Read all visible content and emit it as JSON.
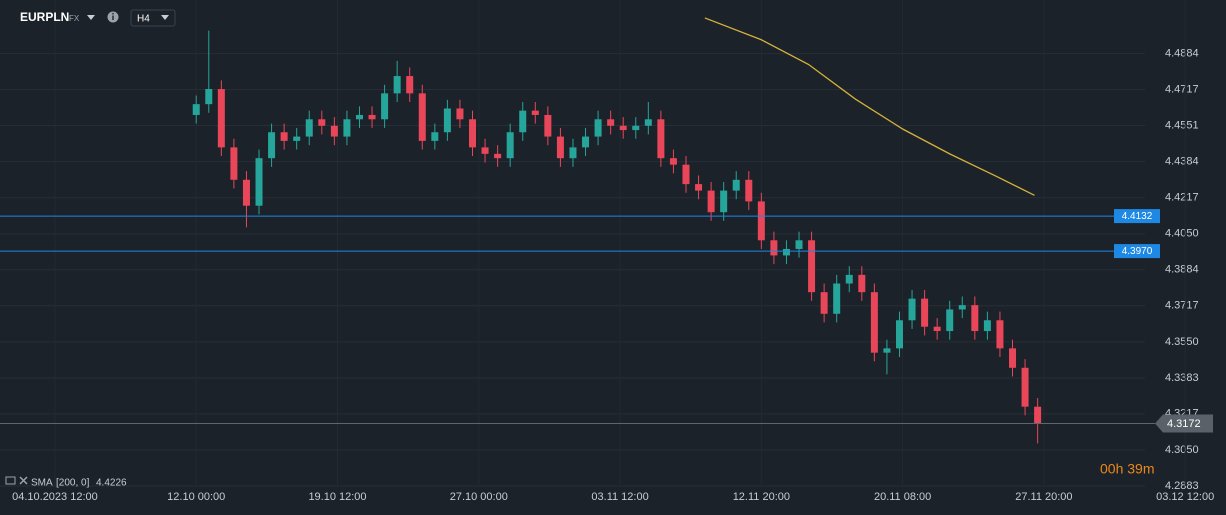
{
  "chart_data": {
    "type": "candlestick",
    "symbol": "EURPLN",
    "market": "FX",
    "timeframe": "H4",
    "up_color": "#26a69a",
    "down_color": "#e9465a",
    "grid": true,
    "xlim": [
      -17.5,
      373
    ],
    "xticks": [
      {
        "value": 0,
        "label": "04.10.2023 12:00"
      },
      {
        "value": 45,
        "label": "12.10 00:00"
      },
      {
        "value": 90,
        "label": "19.10 12:00"
      },
      {
        "value": 135,
        "label": "27.10 00:00"
      },
      {
        "value": 180,
        "label": "03.11 12:00"
      },
      {
        "value": 225,
        "label": "12.11 20:00"
      },
      {
        "value": 270,
        "label": "20.11 08:00"
      },
      {
        "value": 315,
        "label": "27.11 20:00"
      },
      {
        "value": 360,
        "label": "03.12 12:00"
      }
    ],
    "ylim": [
      4.2883,
      4.5132
    ],
    "yticks": [
      4.4884,
      4.4717,
      4.4551,
      4.4384,
      4.4217,
      {
        "value": 4.405,
        "label": "4.4050"
      },
      4.3884,
      4.3717,
      {
        "value": 4.355,
        "label": "4.3550"
      },
      4.3383,
      4.3217,
      {
        "value": 4.305,
        "label": "4.3050"
      },
      4.2883
    ],
    "x": [
      45,
      49,
      53,
      57,
      61,
      65,
      69,
      73,
      77,
      81,
      85,
      89,
      93,
      97,
      101,
      105,
      109,
      113,
      117,
      121,
      125,
      129,
      133,
      137,
      141,
      145,
      149,
      153,
      157,
      161,
      165,
      169,
      173,
      177,
      181,
      185,
      189,
      193,
      197,
      201,
      205,
      209,
      213,
      217,
      221,
      225,
      229,
      233,
      237,
      241,
      245,
      249,
      253,
      257,
      261,
      265,
      269,
      273,
      277,
      281,
      285,
      289,
      293,
      297,
      301,
      305,
      309,
      313
    ],
    "open": [
      4.46,
      4.465,
      4.472,
      4.445,
      4.43,
      4.418,
      4.44,
      4.452,
      4.448,
      4.45,
      4.458,
      4.455,
      4.45,
      4.458,
      4.46,
      4.458,
      4.47,
      4.478,
      4.47,
      4.448,
      4.452,
      4.463,
      4.458,
      4.445,
      4.442,
      4.44,
      4.452,
      4.462,
      4.46,
      4.45,
      4.44,
      4.445,
      4.45,
      4.458,
      4.455,
      4.453,
      4.455,
      4.458,
      4.44,
      4.437,
      4.428,
      4.425,
      4.415,
      4.425,
      4.43,
      4.42,
      4.402,
      4.395,
      4.398,
      4.402,
      4.378,
      4.368,
      4.382,
      4.386,
      4.378,
      4.35,
      4.352,
      4.365,
      4.375,
      4.362,
      4.36,
      4.37,
      4.372,
      4.36,
      4.365,
      4.352,
      4.343,
      4.325
    ],
    "high": [
      4.469,
      4.499,
      4.476,
      4.449,
      4.434,
      4.444,
      4.456,
      4.456,
      4.454,
      4.462,
      4.462,
      4.459,
      4.462,
      4.464,
      4.464,
      4.474,
      4.485,
      4.482,
      4.474,
      4.456,
      4.467,
      4.467,
      4.462,
      4.449,
      4.446,
      4.456,
      4.466,
      4.466,
      4.464,
      4.454,
      4.449,
      4.454,
      4.462,
      4.462,
      4.459,
      4.459,
      4.466,
      4.462,
      4.444,
      4.441,
      4.432,
      4.429,
      4.429,
      4.434,
      4.434,
      4.424,
      4.406,
      4.402,
      4.406,
      4.406,
      4.382,
      4.386,
      4.39,
      4.39,
      4.382,
      4.356,
      4.369,
      4.379,
      4.379,
      4.366,
      4.374,
      4.376,
      4.376,
      4.369,
      4.369,
      4.356,
      4.347,
      4.329
    ],
    "low": [
      4.456,
      4.461,
      4.441,
      4.426,
      4.408,
      4.414,
      4.436,
      4.444,
      4.444,
      4.446,
      4.451,
      4.446,
      4.446,
      4.454,
      4.454,
      4.454,
      4.466,
      4.466,
      4.444,
      4.444,
      4.448,
      4.454,
      4.441,
      4.438,
      4.436,
      4.436,
      4.448,
      4.456,
      4.446,
      4.436,
      4.436,
      4.441,
      4.446,
      4.451,
      4.449,
      4.449,
      4.451,
      4.436,
      4.433,
      4.424,
      4.421,
      4.411,
      4.411,
      4.421,
      4.416,
      4.398,
      4.391,
      4.391,
      4.394,
      4.374,
      4.364,
      4.364,
      4.378,
      4.374,
      4.346,
      4.34,
      4.348,
      4.361,
      4.358,
      4.356,
      4.356,
      4.366,
      4.356,
      4.356,
      4.348,
      4.339,
      4.321,
      4.308
    ],
    "close": [
      4.465,
      4.472,
      4.445,
      4.43,
      4.418,
      4.44,
      4.452,
      4.448,
      4.45,
      4.458,
      4.455,
      4.45,
      4.458,
      4.46,
      4.458,
      4.47,
      4.478,
      4.47,
      4.448,
      4.452,
      4.463,
      4.458,
      4.445,
      4.442,
      4.44,
      4.452,
      4.462,
      4.46,
      4.45,
      4.44,
      4.445,
      4.45,
      4.458,
      4.455,
      4.453,
      4.455,
      4.458,
      4.44,
      4.437,
      4.428,
      4.425,
      4.415,
      4.425,
      4.43,
      4.42,
      4.402,
      4.395,
      4.398,
      4.402,
      4.378,
      4.368,
      4.382,
      4.386,
      4.378,
      4.35,
      4.352,
      4.365,
      4.375,
      4.362,
      4.36,
      4.37,
      4.372,
      4.36,
      4.365,
      4.352,
      4.343,
      4.325,
      4.3172
    ],
    "indicator": {
      "name": "SMA",
      "params": "[200, 0]",
      "value": 4.4226,
      "color": "#d4b23a",
      "x": [
        207,
        225,
        240,
        255,
        270,
        285,
        300,
        312
      ],
      "values": [
        4.5049,
        4.4948,
        4.4834,
        4.4673,
        4.4535,
        4.442,
        4.4315,
        4.4228
      ]
    },
    "levels": [
      {
        "value": 4.4132,
        "label": "4.4132",
        "color": "#1e88e5"
      },
      {
        "value": 4.397,
        "label": "4.3970",
        "color": "#1e88e5"
      }
    ],
    "last_price": 4.3172,
    "timer": "00h 39m"
  }
}
